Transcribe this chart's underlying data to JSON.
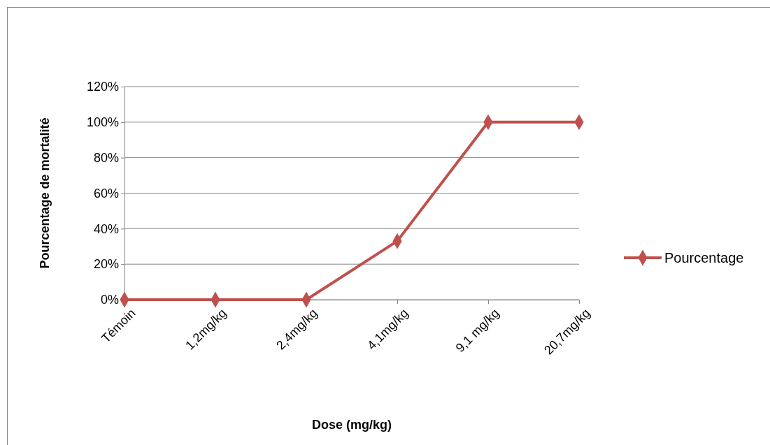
{
  "chart_data": {
    "type": "line",
    "xlabel": "Dose  (mg/kg)",
    "ylabel": "Pourcentage  de mortalité",
    "categories": [
      "Témoin",
      "1,2mg/kg",
      "2,4mg/kg",
      "4,1mg/kg",
      "9,1 mg/kg",
      "20,7mg/kg"
    ],
    "series": [
      {
        "name": "Pourcentage",
        "color": "#c0504d",
        "values": [
          0,
          0,
          0,
          33,
          100,
          100
        ]
      }
    ],
    "ylim": [
      0,
      120
    ],
    "yticks": [
      {
        "value": 0,
        "label": "0%"
      },
      {
        "value": 20,
        "label": "20%"
      },
      {
        "value": 40,
        "label": "40%"
      },
      {
        "value": 60,
        "label": "60%"
      },
      {
        "value": 80,
        "label": "80%"
      },
      {
        "value": 100,
        "label": "100%"
      },
      {
        "value": 120,
        "label": "120%"
      }
    ],
    "grid": "y",
    "legend": "right",
    "marker": "diamond",
    "line_style": "solid"
  }
}
